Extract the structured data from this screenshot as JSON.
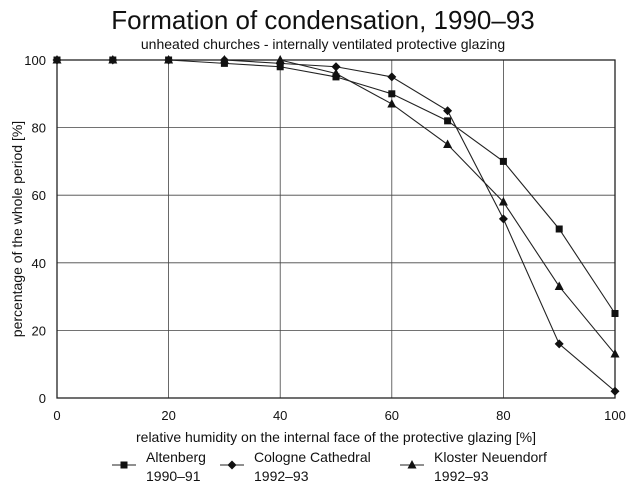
{
  "chart_data": {
    "type": "line",
    "title": "Formation of condensation, 1990–93",
    "subtitle": "unheated churches - internally ventilated protective glazing",
    "xlabel": "relative humidity on the internal face of the protective glazing [%]",
    "ylabel": "percentage of the whole period [%]",
    "xlim": [
      0,
      100
    ],
    "ylim": [
      0,
      100
    ],
    "xticks": [
      "0",
      "20",
      "40",
      "60",
      "80",
      "100"
    ],
    "yticks": [
      "0",
      "20",
      "40",
      "60",
      "80",
      "100"
    ],
    "grid": true,
    "legend_position": "bottom",
    "series": [
      {
        "name": "Altenberg",
        "period": "1990–91",
        "marker": "square",
        "x": [
          0,
          10,
          20,
          30,
          40,
          50,
          60,
          70,
          80,
          90,
          100
        ],
        "y": [
          100,
          100,
          100,
          99,
          98,
          95,
          90,
          82,
          70,
          50,
          25
        ]
      },
      {
        "name": "Cologne Cathedral",
        "period": "1992–93",
        "marker": "diamond",
        "x": [
          0,
          10,
          20,
          30,
          40,
          50,
          60,
          70,
          80,
          90,
          100
        ],
        "y": [
          100,
          100,
          100,
          100,
          99,
          98,
          95,
          85,
          53,
          16,
          2
        ]
      },
      {
        "name": "Kloster Neuendorf",
        "period": "1992–93",
        "marker": "triangle",
        "x": [
          0,
          10,
          20,
          30,
          40,
          50,
          60,
          70,
          80,
          90,
          100
        ],
        "y": [
          100,
          100,
          100,
          100,
          100,
          96,
          87,
          75,
          58,
          33,
          13
        ]
      }
    ]
  }
}
